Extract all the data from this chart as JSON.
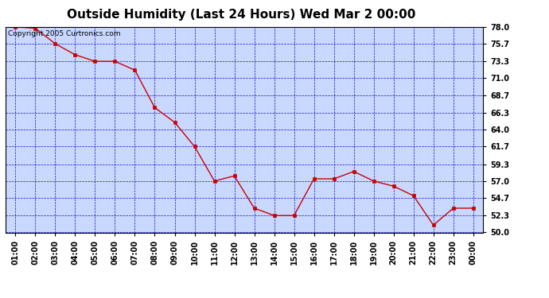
{
  "title": "Outside Humidity (Last 24 Hours) Wed Mar 2 00:00",
  "copyright": "Copyright 2005 Curtronics.com",
  "x_labels": [
    "01:00",
    "02:00",
    "03:00",
    "04:00",
    "05:00",
    "06:00",
    "07:00",
    "08:00",
    "09:00",
    "10:00",
    "11:00",
    "12:00",
    "13:00",
    "14:00",
    "15:00",
    "16:00",
    "17:00",
    "18:00",
    "19:00",
    "20:00",
    "21:00",
    "22:00",
    "23:00",
    "00:00"
  ],
  "x_values": [
    1,
    2,
    3,
    4,
    5,
    6,
    7,
    8,
    9,
    10,
    11,
    12,
    13,
    14,
    15,
    16,
    17,
    18,
    19,
    20,
    21,
    22,
    23,
    24
  ],
  "y_values": [
    78.0,
    77.8,
    75.7,
    74.2,
    73.3,
    73.3,
    72.1,
    67.0,
    65.0,
    61.7,
    57.0,
    57.7,
    53.3,
    52.3,
    52.3,
    57.3,
    57.3,
    58.3,
    57.0,
    56.3,
    55.0,
    51.0,
    53.3,
    53.3
  ],
  "ylim": [
    50.0,
    78.0
  ],
  "yticks": [
    50.0,
    52.3,
    54.7,
    57.0,
    59.3,
    61.7,
    64.0,
    66.3,
    68.7,
    71.0,
    73.3,
    75.7,
    78.0
  ],
  "line_color": "#cc0000",
  "marker_color": "#cc0000",
  "bg_color": "#c8d8ff",
  "grid_color": "#0000cc",
  "title_fontsize": 11,
  "copyright_fontsize": 6.5
}
